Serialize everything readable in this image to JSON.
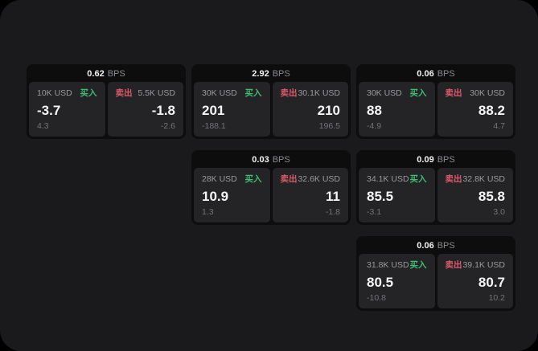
{
  "colors": {
    "surface": "#1a1a1c",
    "card_bg": "#0d0d0e",
    "panel_bg": "#242427",
    "buy_green": "#41bd73",
    "sell_red": "#dd5a6b"
  },
  "cards": [
    {
      "bps": "0.62",
      "unit": "BPS",
      "buy": {
        "amount": "10K USD",
        "label": "买入",
        "value": "-3.7",
        "sub": "4.3"
      },
      "sell": {
        "label": "卖出",
        "amount": "5.5K USD",
        "value": "-1.8",
        "sub": "-2.6"
      }
    },
    {
      "bps": "2.92",
      "unit": "BPS",
      "buy": {
        "amount": "30K USD",
        "label": "买入",
        "value": "201",
        "sub": "-188.1"
      },
      "sell": {
        "label": "卖出",
        "amount": "30.1K USD",
        "value": "210",
        "sub": "196.5"
      }
    },
    {
      "bps": "0.06",
      "unit": "BPS",
      "buy": {
        "amount": "30K USD",
        "label": "买入",
        "value": "88",
        "sub": "-4.9"
      },
      "sell": {
        "label": "卖出",
        "amount": "30K USD",
        "value": "88.2",
        "sub": "4.7"
      }
    },
    {
      "bps": "0.03",
      "unit": "BPS",
      "buy": {
        "amount": "28K USD",
        "label": "买入",
        "value": "10.9",
        "sub": "1.3"
      },
      "sell": {
        "label": "卖出",
        "amount": "32.6K USD",
        "value": "11",
        "sub": "-1.8"
      }
    },
    {
      "bps": "0.09",
      "unit": "BPS",
      "buy": {
        "amount": "34.1K USD",
        "label": "买入",
        "value": "85.5",
        "sub": "-3.1"
      },
      "sell": {
        "label": "卖出",
        "amount": "32.8K USD",
        "value": "85.8",
        "sub": "3.0"
      }
    },
    {
      "bps": "0.06",
      "unit": "BPS",
      "buy": {
        "amount": "31.8K USD",
        "label": "买入",
        "value": "80.5",
        "sub": "-10.8"
      },
      "sell": {
        "label": "卖出",
        "amount": "39.1K USD",
        "value": "80.7",
        "sub": "10.2"
      }
    }
  ]
}
